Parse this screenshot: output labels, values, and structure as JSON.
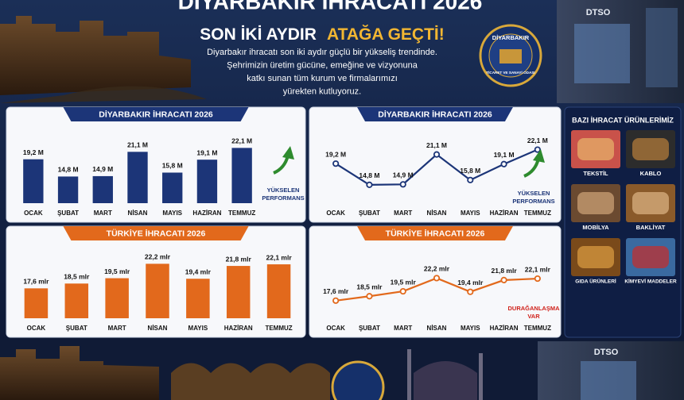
{
  "header": {
    "title": "DİYARBAKIR İHRACATI 2026",
    "subtitle_a": "SON İKİ AYDIR",
    "subtitle_b": "ATAĞA GEÇTİ!",
    "lines": [
      "Diyarbakır ihracatı son iki aydır güçlü bir yükseliş trendinde.",
      "Şehrimizin üretim gücüne, emeğine ve vizyonuna",
      "katkı sunan tüm kurum ve firmalarımızı",
      "yürekten kutluyoruz."
    ]
  },
  "badge": {
    "top": "DİYARBAKIR",
    "bottom": "TİCARET VE SANAYİ ODASI"
  },
  "signs": [
    "DTSO",
    "DTSO"
  ],
  "products": {
    "title": "BAZI İHRACAT ÜRÜNLERİMİZ",
    "items": [
      "TEKSTİL",
      "KABLO",
      "MOBİLYA",
      "BAKLİYAT",
      "GIDA ÜRÜNLERİ",
      "KİMYEVİ MADDELER"
    ]
  },
  "chart_data": [
    {
      "type": "bar",
      "title": "DİYARBAKIR İHRACATI 2026",
      "categories": [
        "OCAK",
        "ŞUBAT",
        "MART",
        "NİSAN",
        "MAYIS",
        "HAZİRAN",
        "TEMMUZ"
      ],
      "values": [
        19.2,
        14.8,
        14.9,
        21.1,
        15.8,
        19.1,
        22.1
      ],
      "value_labels": [
        "19,2 M",
        "14,8 M",
        "14,9 M",
        "21,1 M",
        "15,8 M",
        "19,1 M",
        "22,1 M"
      ],
      "color": "#1c3578",
      "ylim": [
        8,
        24
      ],
      "annotation": [
        "YÜKSELEN",
        "PERFORMANS"
      ],
      "annotation_color": "#1c3578"
    },
    {
      "type": "line",
      "title": "DİYARBAKIR İHRACATI 2026",
      "categories": [
        "OCAK",
        "ŞUBAT",
        "MART",
        "NİSAN",
        "MAYIS",
        "HAZİRAN",
        "TEMMUZ"
      ],
      "values": [
        19.2,
        14.8,
        14.9,
        21.1,
        15.8,
        19.1,
        22.1
      ],
      "value_labels": [
        "19,2 M",
        "14,8 M",
        "14,9 M",
        "21,1 M",
        "15,8 M",
        "19,1 M",
        "22,1 M"
      ],
      "color": "#1c3578",
      "ylim": [
        11,
        24
      ],
      "annotation": [
        "YÜKSELEN",
        "PERFORMANS"
      ],
      "annotation_color": "#1c3578"
    },
    {
      "type": "bar",
      "title": "TÜRKİYE İHRACATI 2026",
      "categories": [
        "OCAK",
        "ŞUBAT",
        "MART",
        "NİSAN",
        "MAYIS",
        "HAZİRAN",
        "TEMMUZ"
      ],
      "values": [
        17.6,
        18.5,
        19.5,
        22.2,
        19.4,
        21.8,
        22.1
      ],
      "value_labels": [
        "17,6 mlr",
        "18,5 mlr",
        "19,5 mlr",
        "22,2 mlr",
        "19,4 mlr",
        "21,8 mlr",
        "22,1 mlr"
      ],
      "color": "#e2691c",
      "ylim": [
        12,
        23
      ]
    },
    {
      "type": "line",
      "title": "TÜRKİYE İHRACATI 2026",
      "categories": [
        "OCAK",
        "ŞUBAT",
        "MART",
        "NİSAN",
        "MAYIS",
        "HAZİRAN",
        "TEMMUZ"
      ],
      "values": [
        17.6,
        18.5,
        19.5,
        22.2,
        19.4,
        21.8,
        22.1
      ],
      "value_labels": [
        "17,6 mlr",
        "18,5 mlr",
        "19,5 mlr",
        "22,2 mlr",
        "19,4 mlr",
        "21,8 mlr",
        "22,1 mlr"
      ],
      "color": "#e2691c",
      "ylim": [
        14,
        26
      ],
      "annotation": [
        "DURAĞANLAŞMA",
        "VAR"
      ],
      "annotation_color": "#d0221b"
    }
  ]
}
